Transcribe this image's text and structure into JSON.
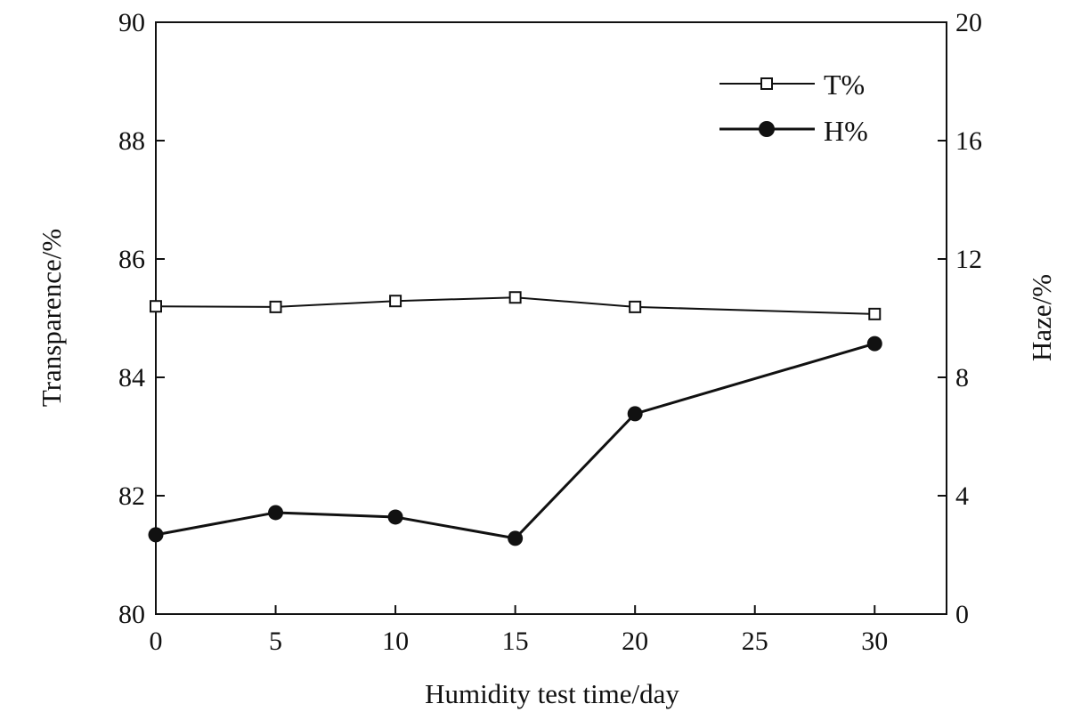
{
  "chart_data": {
    "type": "line",
    "xlabel": "Humidity test time/day",
    "ylabel": "Transparence/%",
    "y2label": "Haze/%",
    "x": [
      0,
      5,
      10,
      15,
      20,
      30
    ],
    "xlim": [
      0,
      33
    ],
    "ylim": [
      80,
      90
    ],
    "y2lim": [
      0,
      20
    ],
    "xticks": [
      0,
      5,
      10,
      15,
      20,
      25,
      30
    ],
    "yticks": [
      80,
      82,
      84,
      86,
      88,
      90
    ],
    "y2ticks": [
      0,
      4,
      8,
      12,
      16,
      20
    ],
    "grid": false,
    "legend_position": "top-right",
    "series": [
      {
        "name": "T%",
        "axis": "left",
        "marker": "open-square",
        "color": "#111111",
        "values": [
          85.2,
          85.19,
          85.29,
          85.35,
          85.19,
          85.07
        ]
      },
      {
        "name": "H%",
        "axis": "right",
        "marker": "filled-circle",
        "color": "#111111",
        "values": [
          2.68,
          3.43,
          3.28,
          2.56,
          6.77,
          9.14
        ]
      }
    ]
  }
}
